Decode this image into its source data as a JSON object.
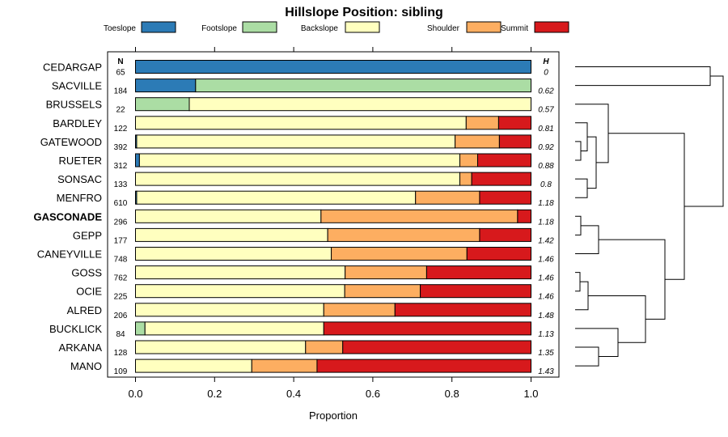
{
  "chart_data": {
    "type": "bar",
    "orientation": "horizontal",
    "stacked": true,
    "title": "Hillslope Position: sibling",
    "xlabel": "Proportion",
    "ylabel": "",
    "xlim": [
      0,
      1
    ],
    "xticks": [
      "0.0",
      "0.2",
      "0.4",
      "0.6",
      "0.8",
      "1.0"
    ],
    "grid": false,
    "legend_position": "top",
    "n_header": "N",
    "h_header": "H",
    "categories": [
      "CEDARGAP",
      "SACVILLE",
      "BRUSSELS",
      "BARDLEY",
      "GATEWOOD",
      "RUETER",
      "SONSAC",
      "MENFRO",
      "GASCONADE",
      "GEPP",
      "CANEYVILLE",
      "GOSS",
      "OCIE",
      "ALRED",
      "BUCKLICK",
      "ARKANA",
      "MANO"
    ],
    "highlight_category": "GASCONADE",
    "n": [
      "65",
      "184",
      "22",
      "122",
      "392",
      "312",
      "133",
      "610",
      "296",
      "177",
      "748",
      "762",
      "225",
      "206",
      "84",
      "128",
      "109"
    ],
    "h": [
      "0",
      "0.62",
      "0.57",
      "0.81",
      "0.92",
      "0.88",
      "0.8",
      "1.18",
      "1.18",
      "1.42",
      "1.46",
      "1.46",
      "1.46",
      "1.48",
      "1.13",
      "1.35",
      "1.43"
    ],
    "series": [
      {
        "name": "Toeslope",
        "color": "#2c7bb6",
        "values": [
          1.0,
          0.152,
          0.0,
          0.0,
          0.003,
          0.01,
          0.0,
          0.003,
          0.0,
          0.0,
          0.0,
          0.0,
          0.0,
          0.0,
          0.0,
          0.0,
          0.0
        ]
      },
      {
        "name": "Footslope",
        "color": "#abdda4",
        "values": [
          0.0,
          0.848,
          0.136,
          0.0,
          0.0,
          0.0,
          0.0,
          0.0,
          0.0,
          0.0,
          0.0,
          0.0,
          0.0,
          0.0,
          0.024,
          0.0,
          0.0
        ]
      },
      {
        "name": "Backslope",
        "color": "#ffffbf",
        "values": [
          0.0,
          0.0,
          0.864,
          0.836,
          0.805,
          0.81,
          0.82,
          0.705,
          0.469,
          0.486,
          0.495,
          0.53,
          0.529,
          0.476,
          0.452,
          0.43,
          0.294
        ]
      },
      {
        "name": "Shoulder",
        "color": "#fdae61",
        "values": [
          0.0,
          0.0,
          0.0,
          0.082,
          0.112,
          0.045,
          0.03,
          0.162,
          0.497,
          0.384,
          0.343,
          0.206,
          0.191,
          0.18,
          0.0,
          0.094,
          0.165
        ]
      },
      {
        "name": "Summit",
        "color": "#d7191c",
        "values": [
          0.0,
          0.0,
          0.0,
          0.082,
          0.08,
          0.135,
          0.15,
          0.13,
          0.034,
          0.13,
          0.162,
          0.264,
          0.28,
          0.344,
          0.524,
          0.476,
          0.541
        ]
      }
    ]
  }
}
